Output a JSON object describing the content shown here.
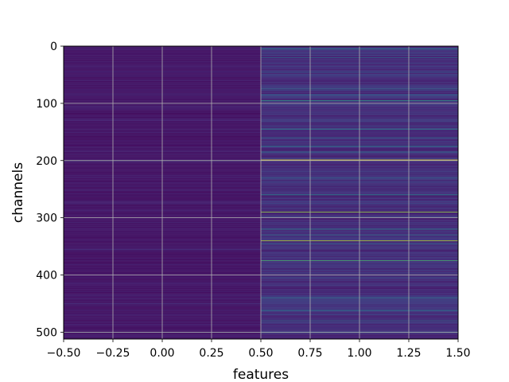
{
  "chart_data": {
    "type": "heatmap",
    "title": "",
    "xlabel": "features",
    "ylabel": "channels",
    "xlim": [
      -0.5,
      1.5
    ],
    "ylim": [
      512,
      0
    ],
    "y_inverted": true,
    "x_ticks": [
      -0.5,
      -0.25,
      0.0,
      0.25,
      0.5,
      0.75,
      1.0,
      1.25,
      1.5
    ],
    "x_tick_labels": [
      "−0.50",
      "−0.25",
      "0.00",
      "0.25",
      "0.50",
      "0.75",
      "1.00",
      "1.25",
      "1.50"
    ],
    "y_ticks": [
      0,
      100,
      200,
      300,
      400,
      500
    ],
    "y_tick_labels": [
      "0",
      "100",
      "200",
      "300",
      "400",
      "500"
    ],
    "grid": true,
    "colormap": "viridis",
    "columns": [
      0,
      1
    ],
    "rows": 512,
    "column_0": {
      "baseline": 0.04,
      "highlights": [
        {
          "channel": 200,
          "value": 0.35
        },
        {
          "channel": 500,
          "value": 0.3
        },
        {
          "channel": 130,
          "value": 0.12
        },
        {
          "channel": 355,
          "value": 0.15
        },
        {
          "channel": 450,
          "value": 0.15
        },
        {
          "channel": 470,
          "value": 0.12
        }
      ]
    },
    "column_1": {
      "baseline": 0.08,
      "highlights": [
        {
          "channel": 5,
          "value": 0.45
        },
        {
          "channel": 20,
          "value": 0.35
        },
        {
          "channel": 45,
          "value": 0.3
        },
        {
          "channel": 75,
          "value": 0.4
        },
        {
          "channel": 85,
          "value": 0.35
        },
        {
          "channel": 95,
          "value": 0.6
        },
        {
          "channel": 145,
          "value": 0.45
        },
        {
          "channel": 160,
          "value": 0.35
        },
        {
          "channel": 175,
          "value": 0.45
        },
        {
          "channel": 185,
          "value": 0.4
        },
        {
          "channel": 199,
          "value": 1.0
        },
        {
          "channel": 230,
          "value": 0.35
        },
        {
          "channel": 260,
          "value": 0.5
        },
        {
          "channel": 290,
          "value": 0.85
        },
        {
          "channel": 320,
          "value": 0.45
        },
        {
          "channel": 330,
          "value": 0.4
        },
        {
          "channel": 340,
          "value": 0.9
        },
        {
          "channel": 345,
          "value": 0.35
        },
        {
          "channel": 375,
          "value": 0.7
        },
        {
          "channel": 440,
          "value": 0.4
        },
        {
          "channel": 462,
          "value": 0.45
        },
        {
          "channel": 480,
          "value": 0.35
        },
        {
          "channel": 500,
          "value": 0.55
        }
      ]
    }
  }
}
